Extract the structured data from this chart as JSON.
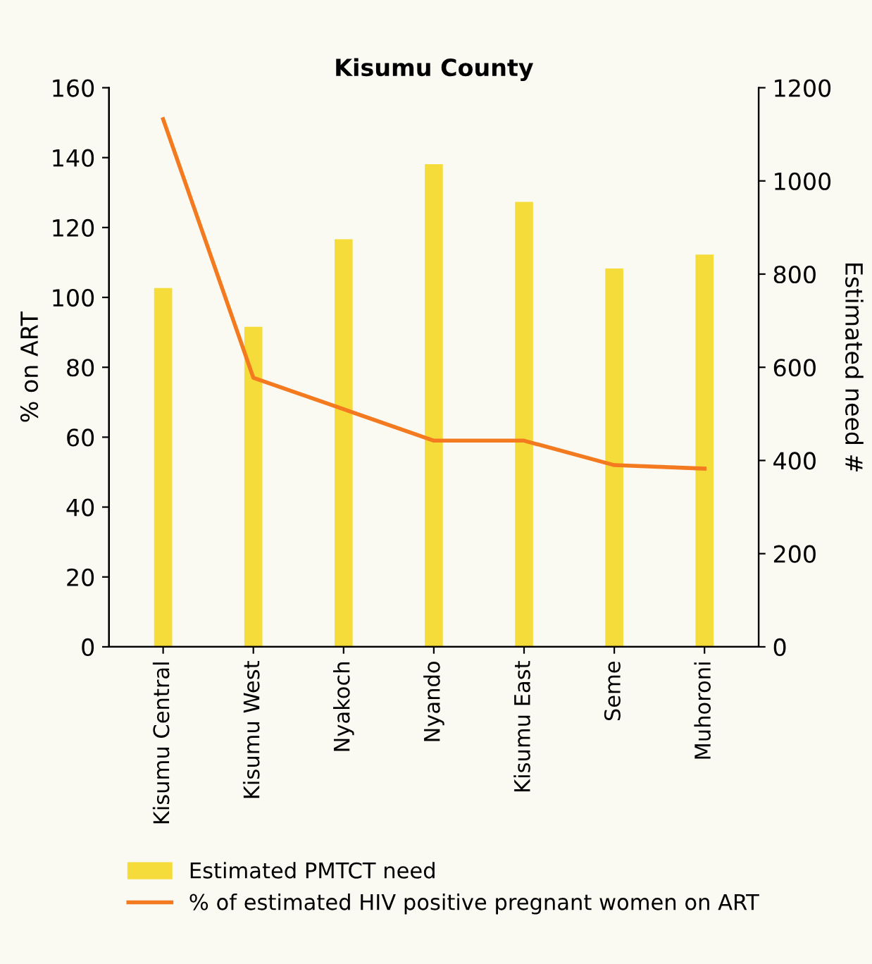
{
  "chart_data": {
    "type": "bar",
    "title": "Kisumu County",
    "categories": [
      "Kisumu Central",
      "Kisumu West",
      "Nyakoch",
      "Nyando",
      "Kisumu East",
      "Seme",
      "Muhoroni"
    ],
    "ylabel": "% on ART",
    "y2label": "Estimated need #",
    "ylim": [
      0,
      160
    ],
    "yticks": [
      0,
      20,
      40,
      60,
      80,
      100,
      120,
      140,
      160
    ],
    "y2lim": [
      0,
      1200
    ],
    "y2ticks": [
      0,
      200,
      400,
      600,
      800,
      1000,
      1200
    ],
    "series": [
      {
        "name": "Estimated PMTCT need",
        "axis": "y2",
        "color": "#f5dc3a",
        "values": [
          770,
          687,
          875,
          1036,
          955,
          812,
          842
        ]
      },
      {
        "name": "% of estimated HIV positive pregnant women on ART",
        "type": "line",
        "axis": "y",
        "color": "#f47a20",
        "values": [
          151,
          77,
          68,
          59,
          59,
          52,
          51
        ]
      }
    ],
    "legend": "bottom",
    "grid": false
  }
}
